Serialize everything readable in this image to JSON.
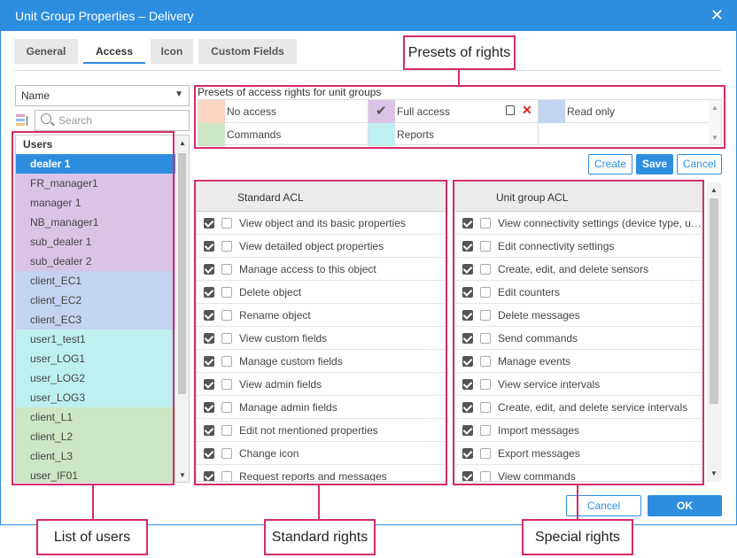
{
  "window": {
    "title": "Unit Group Properties – Delivery"
  },
  "tabs": [
    {
      "label": "General"
    },
    {
      "label": "Access",
      "active": true
    },
    {
      "label": "Icon"
    },
    {
      "label": "Custom Fields"
    }
  ],
  "sort_select": {
    "value": "Name"
  },
  "search": {
    "placeholder": "Search"
  },
  "users": {
    "header": "Users",
    "items": [
      {
        "label": "dealer 1",
        "color": "#2d8ee0",
        "selected": true
      },
      {
        "label": "FR_manager1",
        "color": "#d9c4e8"
      },
      {
        "label": "manager 1",
        "color": "#d9c4e8"
      },
      {
        "label": "NB_manager1",
        "color": "#d9c4e8"
      },
      {
        "label": "sub_dealer 1",
        "color": "#d9c4e8"
      },
      {
        "label": "sub_dealer 2",
        "color": "#d9c4e8"
      },
      {
        "label": "client_EC1",
        "color": "#c3d3f1"
      },
      {
        "label": "client_EC2",
        "color": "#c3d3f1"
      },
      {
        "label": "client_EC3",
        "color": "#c3d3f1"
      },
      {
        "label": "user1_test1",
        "color": "#bff0f0"
      },
      {
        "label": "user_LOG1",
        "color": "#bff0f0"
      },
      {
        "label": "user_LOG2",
        "color": "#bff0f0"
      },
      {
        "label": "user_LOG3",
        "color": "#bff0f0"
      },
      {
        "label": "client_L1",
        "color": "#cde6c4"
      },
      {
        "label": "client_L2",
        "color": "#cde6c4"
      },
      {
        "label": "client_L3",
        "color": "#cde6c4"
      },
      {
        "label": "user_IF01",
        "color": "#cde6c4"
      }
    ]
  },
  "presets": {
    "title": "Presets of access rights for unit groups",
    "items": [
      {
        "label": "No access",
        "color": "#fcd5c0"
      },
      {
        "label": "Full access",
        "color": "#d9c4e8"
      },
      {
        "label": "Read only",
        "color": "#c3d3f1"
      },
      {
        "label": "Commands",
        "color": "#cde6c4"
      },
      {
        "label": "Reports",
        "color": "#bff0f0"
      }
    ]
  },
  "preset_buttons": {
    "create": "Create",
    "save": "Save",
    "cancel": "Cancel"
  },
  "standard_acl": {
    "header": "Standard ACL",
    "rows": [
      "View object and its basic properties",
      "View detailed object properties",
      "Manage access to this object",
      "Delete object",
      "Rename object",
      "View custom fields",
      "Manage custom fields",
      "View admin fields",
      "Manage admin fields",
      "Edit not mentioned properties",
      "Change icon",
      "Request reports and messages"
    ]
  },
  "unit_group_acl": {
    "header": "Unit group ACL",
    "rows": [
      "View connectivity settings (device type, u…",
      "Edit connectivity settings",
      "Create, edit, and delete sensors",
      "Edit counters",
      "Delete messages",
      "Send commands",
      "Manage events",
      "View service intervals",
      "Create, edit, and delete service intervals",
      "Import messages",
      "Export messages",
      "View commands"
    ]
  },
  "footer": {
    "cancel": "Cancel",
    "ok": "OK"
  },
  "callouts": {
    "presets": "Presets of rights",
    "users": "List of users",
    "standard": "Standard rights",
    "special": "Special rights"
  },
  "accent_color": "#2d8ee0",
  "highlight_color": "#d62b6a"
}
